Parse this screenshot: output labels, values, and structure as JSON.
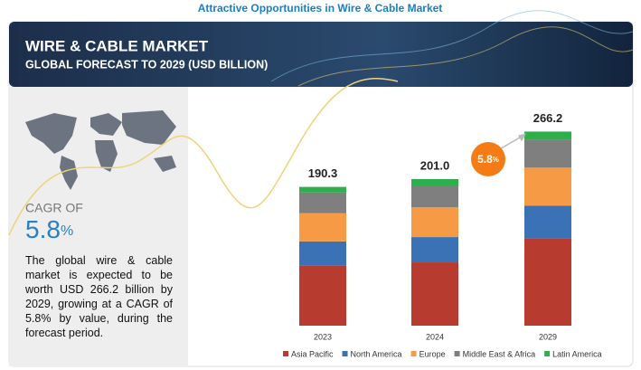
{
  "header": {
    "title": "Attractive Opportunities in Wire & Cable Market"
  },
  "banner": {
    "title": "WIRE & CABLE MARKET",
    "subtitle": "GLOBAL FORECAST TO 2029 (USD BILLION)"
  },
  "sidebar": {
    "cagr_label": "CAGR OF",
    "text": "The global wire & cable market is expected to be worth USD 266.2 billion by 2029, growing at a CAGR of 5.8% by value, during the forecast period."
  },
  "chart_data": {
    "type": "stacked_bar",
    "categories": [
      "2023",
      "2024",
      "2029"
    ],
    "series": [
      {
        "name": "Asia Pacific",
        "color": "#b83b30",
        "values": [
          82.0,
          86.8,
          120.1
        ]
      },
      {
        "name": "North America",
        "color": "#3b72b6",
        "values": [
          33.6,
          34.7,
          44.6
        ]
      },
      {
        "name": "Europe",
        "color": "#f79a46",
        "values": [
          38.6,
          41.0,
          52.0
        ]
      },
      {
        "name": "Middle East & Africa",
        "color": "#7f7f7f",
        "values": [
          28.6,
          29.8,
          38.4
        ]
      },
      {
        "name": "Latin America",
        "color": "#2db04c",
        "values": [
          7.5,
          8.7,
          11.1
        ]
      }
    ],
    "totals": {
      "values": [
        190.3,
        201,
        266.2
      ],
      "value_labels": [
        "190.3",
        "201.0",
        "266.2"
      ]
    },
    "cagr": 5.8,
    "cagr_unit": "%",
    "legend": "bottom"
  }
}
